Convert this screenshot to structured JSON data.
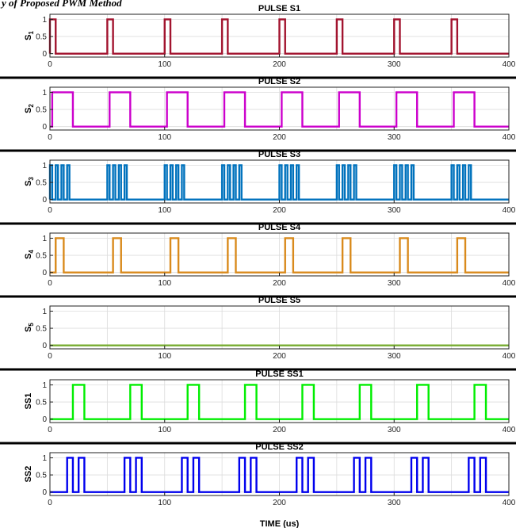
{
  "header": {
    "text": "y of Proposed PWM Method"
  },
  "figure": {
    "xlabel": "TIME (us)",
    "xlim": [
      0,
      400
    ],
    "ylim": [
      -0.1,
      1.15
    ],
    "xticks": [
      0,
      100,
      200,
      300,
      400
    ],
    "yticks": [
      0,
      0.5,
      1
    ],
    "grid": true
  },
  "chart_data": [
    {
      "type": "line",
      "title": "PULSE S1",
      "ylabel": "S_1",
      "color": "#a2142f",
      "period": 50,
      "pulses": [
        [
          0,
          5
        ]
      ],
      "show_xlabel": false
    },
    {
      "type": "line",
      "title": "PULSE S2",
      "ylabel": "S_2",
      "color": "#cc00cc",
      "period": 50,
      "pulses": [
        [
          2,
          20
        ]
      ],
      "show_xlabel": false
    },
    {
      "type": "line",
      "title": "PULSE S3",
      "ylabel": "S_3",
      "color": "#0072bd",
      "period": 50,
      "pulses": [
        [
          0,
          2
        ],
        [
          5,
          7
        ],
        [
          10,
          12
        ],
        [
          15,
          17
        ]
      ],
      "show_xlabel": false
    },
    {
      "type": "line",
      "title": "PULSE S4",
      "ylabel": "S_4",
      "color": "#d98a1c",
      "period": 50,
      "pulses": [
        [
          5,
          12
        ]
      ],
      "show_xlabel": false
    },
    {
      "type": "line",
      "title": "PULSE S5",
      "ylabel": "S_5",
      "color": "#77ac30",
      "period": 50,
      "pulses": [],
      "show_xlabel": false
    },
    {
      "type": "line",
      "title": "PULSE SS1",
      "ylabel": "SS1",
      "color": "#00ee00",
      "period": 50,
      "pulses": [
        [
          20,
          30
        ]
      ],
      "show_xlabel": false
    },
    {
      "type": "line",
      "title": "PULSE SS2",
      "ylabel": "SS2",
      "color": "#0000ee",
      "period": 50,
      "pulses": [
        [
          15,
          20
        ],
        [
          25,
          30
        ]
      ],
      "show_xlabel": true
    }
  ]
}
